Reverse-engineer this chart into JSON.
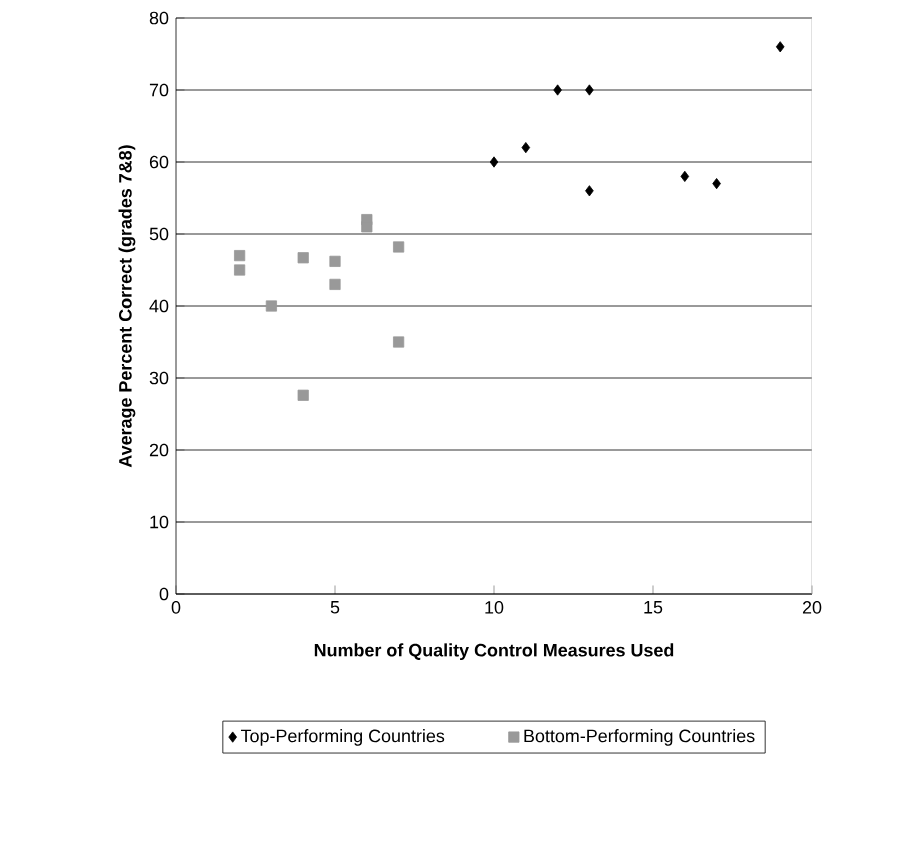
{
  "chart_data": {
    "type": "scatter",
    "xlabel": "Number of Quality Control Measures Used",
    "ylabel": "Average Percent Correct (grades 7&8)",
    "xlim": [
      0,
      20
    ],
    "xticks": [
      0,
      5,
      10,
      15,
      20
    ],
    "ylim": [
      0,
      80
    ],
    "yticks": [
      0,
      10,
      20,
      30,
      40,
      50,
      60,
      70,
      80
    ],
    "grid": "y",
    "legend": "bottom",
    "series": [
      {
        "name": "Top-Performing Countries",
        "color": "#000000",
        "marker": "diamond",
        "x": [
          10,
          11,
          12,
          13,
          13,
          16,
          17,
          19
        ],
        "values": [
          60,
          62,
          70,
          70,
          56,
          58,
          57,
          76
        ]
      },
      {
        "name": "Bottom-Performing Countries",
        "color": "#999999",
        "marker": "square",
        "x": [
          2,
          2,
          3,
          4,
          4,
          5,
          5,
          6,
          6,
          7,
          7
        ],
        "values": [
          47,
          45,
          40,
          46.7,
          27.6,
          46.2,
          43,
          52,
          51,
          48.2,
          35
        ]
      }
    ]
  }
}
